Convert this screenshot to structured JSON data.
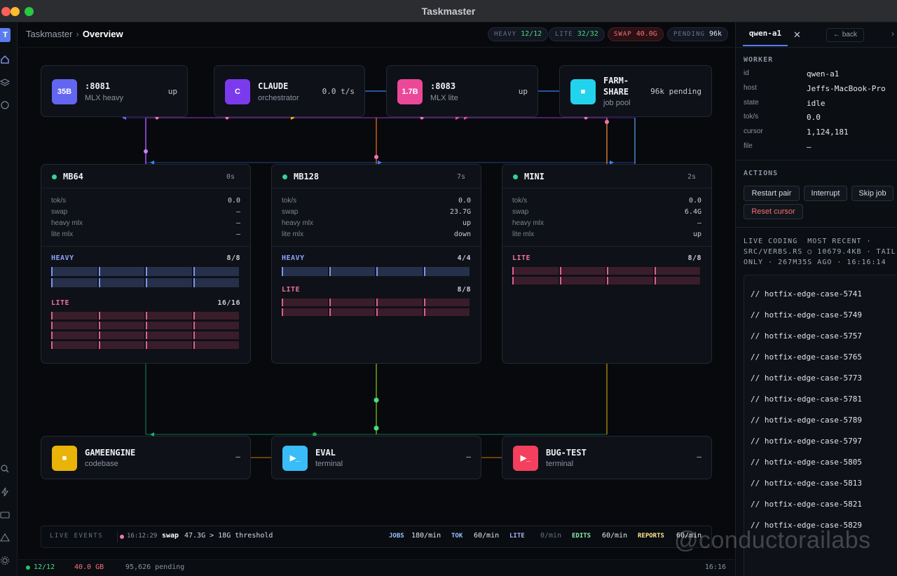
{
  "window": {
    "title": "Taskmaster"
  },
  "rail": {
    "logo": "T",
    "icons": [
      "home-icon",
      "layers-icon",
      "chat-icon",
      "search-icon",
      "bolt-icon",
      "keyboard-icon",
      "warning-icon",
      "gear-icon"
    ]
  },
  "breadcrumb": {
    "root": "Taskmaster",
    "separator": "›",
    "current": "Overview"
  },
  "pills": {
    "heavy": {
      "key": "HEAVY",
      "value": "12/12",
      "color": "#4ade80"
    },
    "lite": {
      "key": "LITE",
      "value": "32/32",
      "color": "#4ade80"
    },
    "swap": {
      "key": "SWAP",
      "value": "40.0G",
      "color": "#f87171"
    },
    "pending": {
      "key": "PENDING",
      "value": "96k",
      "color": "#e5e7eb"
    }
  },
  "top_nodes": [
    {
      "tile": "35B",
      "tile_color": "#6366f1",
      "name": ":8081",
      "sub": "MLX heavy",
      "right": "up"
    },
    {
      "tile": "C",
      "tile_color": "#7c3aed",
      "name": "CLAUDE",
      "sub": "orchestrator",
      "right": "0.0 t/s"
    },
    {
      "tile": "1.7B",
      "tile_color": "#ec4899",
      "name": ":8083",
      "sub": "MLX lite",
      "right": "up"
    },
    {
      "tile": "■",
      "tile_color": "#22d3ee",
      "name": "FARM-",
      "name2": "SHARE",
      "sub": "job pool",
      "right": "96k pending"
    }
  ],
  "machines": [
    {
      "name": "MB64",
      "time": "0s",
      "stats": [
        {
          "label": "tok/s",
          "value": "0.0"
        },
        {
          "label": "swap",
          "value": "—"
        },
        {
          "label": "heavy mlx",
          "value": "—"
        },
        {
          "label": "lite mlx",
          "value": "—"
        }
      ],
      "heavy": {
        "label": "HEAVY",
        "count": "8/8"
      },
      "lite": {
        "label": "LITE",
        "count": "16/16"
      }
    },
    {
      "name": "MB128",
      "time": "7s",
      "stats": [
        {
          "label": "tok/s",
          "value": "0.0"
        },
        {
          "label": "swap",
          "value": "23.7G"
        },
        {
          "label": "heavy mlx",
          "value": "up"
        },
        {
          "label": "lite mlx",
          "value": "down"
        }
      ],
      "heavy": {
        "label": "HEAVY",
        "count": "4/4"
      },
      "lite": {
        "label": "LITE",
        "count": "8/8"
      }
    },
    {
      "name": "MINI",
      "time": "2s",
      "stats": [
        {
          "label": "tok/s",
          "value": "0.0"
        },
        {
          "label": "swap",
          "value": "6.4G"
        },
        {
          "label": "heavy mlx",
          "value": "—"
        },
        {
          "label": "lite mlx",
          "value": "up"
        }
      ],
      "lite": {
        "label": "LITE",
        "count": "8/8"
      }
    }
  ],
  "bottom_nodes": [
    {
      "tile": "■",
      "tile_color": "#eab308",
      "name": "GAMEENGINE",
      "sub": "codebase",
      "right": "—"
    },
    {
      "tile": "▶_",
      "tile_color": "#38bdf8",
      "name": "EVAL",
      "sub": "terminal",
      "right": "—"
    },
    {
      "tile": "▶_",
      "tile_color": "#f43f5e",
      "name": "BUG-TEST",
      "sub": "terminal",
      "right": "—"
    }
  ],
  "events": {
    "label": "LIVE EVENTS",
    "time": "16:12:29",
    "kind": "swap",
    "text": "47.3G > 18G threshold",
    "metrics": [
      {
        "key": "JOBS",
        "value": "180/min",
        "key_color": "#93c5fd"
      },
      {
        "key": "TOK",
        "value": "60/min",
        "key_color": "#93c5fd"
      },
      {
        "key": "LITE",
        "value": "0/min",
        "key_color": "#a5b4fc"
      },
      {
        "key": "EDITS",
        "value": "60/min",
        "key_color": "#86efac"
      },
      {
        "key": "REPORTS",
        "value": "60/min",
        "key_color": "#fde68a"
      }
    ]
  },
  "status": {
    "workers": "12/12",
    "memory": "40.0 GB",
    "pending": "95,626 pending",
    "clock": "16:16"
  },
  "panel": {
    "tab": "qwen-a1",
    "back": "← back",
    "worker_header": "WORKER",
    "worker": [
      {
        "k": "id",
        "v": "qwen-a1"
      },
      {
        "k": "host",
        "v": "Jeffs-MacBook-Pro"
      },
      {
        "k": "state",
        "v": "idle"
      },
      {
        "k": "tok/s",
        "v": "0.0"
      },
      {
        "k": "cursor",
        "v": "1,124,181"
      },
      {
        "k": "file",
        "v": "—"
      }
    ],
    "actions_header": "ACTIONS",
    "actions": [
      "Restart pair",
      "Interrupt",
      "Skip job",
      "Reset cursor"
    ],
    "live_header": "LIVE CODING",
    "live_line1_rest": "MOST RECENT ·",
    "live_line2": "SRC/VERBS.RS  ○ 10679.4KB · TAIL",
    "live_line3": "ONLY · 267M35S AGO · 16:16:14",
    "code_lines": [
      "// hotfix-edge-case-5741",
      "// hotfix-edge-case-5749",
      "// hotfix-edge-case-5757",
      "// hotfix-edge-case-5765",
      "// hotfix-edge-case-5773",
      "// hotfix-edge-case-5781",
      "// hotfix-edge-case-5789",
      "// hotfix-edge-case-5797",
      "// hotfix-edge-case-5805",
      "// hotfix-edge-case-5813",
      "// hotfix-edge-case-5821",
      "// hotfix-edge-case-5829"
    ]
  },
  "watermark": "@conductorailabs"
}
